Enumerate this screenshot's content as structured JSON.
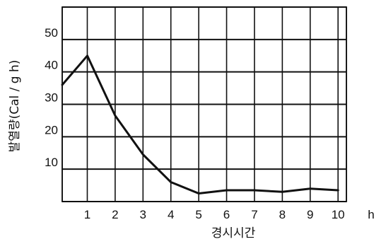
{
  "chart_data": {
    "type": "line",
    "title": "",
    "xlabel": "경시시간",
    "ylabel": "발열량(Cal / g h)",
    "x_unit": "h",
    "xlim": [
      0.1,
      10.3
    ],
    "ylim": [
      0,
      60
    ],
    "x_ticks": [
      1,
      2,
      3,
      4,
      5,
      6,
      7,
      8,
      9,
      10
    ],
    "y_ticks": [
      10,
      20,
      30,
      40,
      50
    ],
    "x_gridlines": [
      0.1,
      1,
      2,
      3,
      4,
      5,
      6,
      7,
      8,
      9,
      10,
      10.3
    ],
    "y_gridlines": [
      0,
      10,
      20,
      30,
      40,
      50,
      60
    ],
    "grid": true,
    "series": [
      {
        "x": [
          0.1,
          1,
          2,
          3,
          4,
          5,
          6,
          7,
          8,
          9,
          10
        ],
        "y": [
          36,
          45,
          26.5,
          14.5,
          6,
          2.5,
          3.5,
          3.5,
          3,
          4,
          3.5
        ]
      }
    ]
  }
}
